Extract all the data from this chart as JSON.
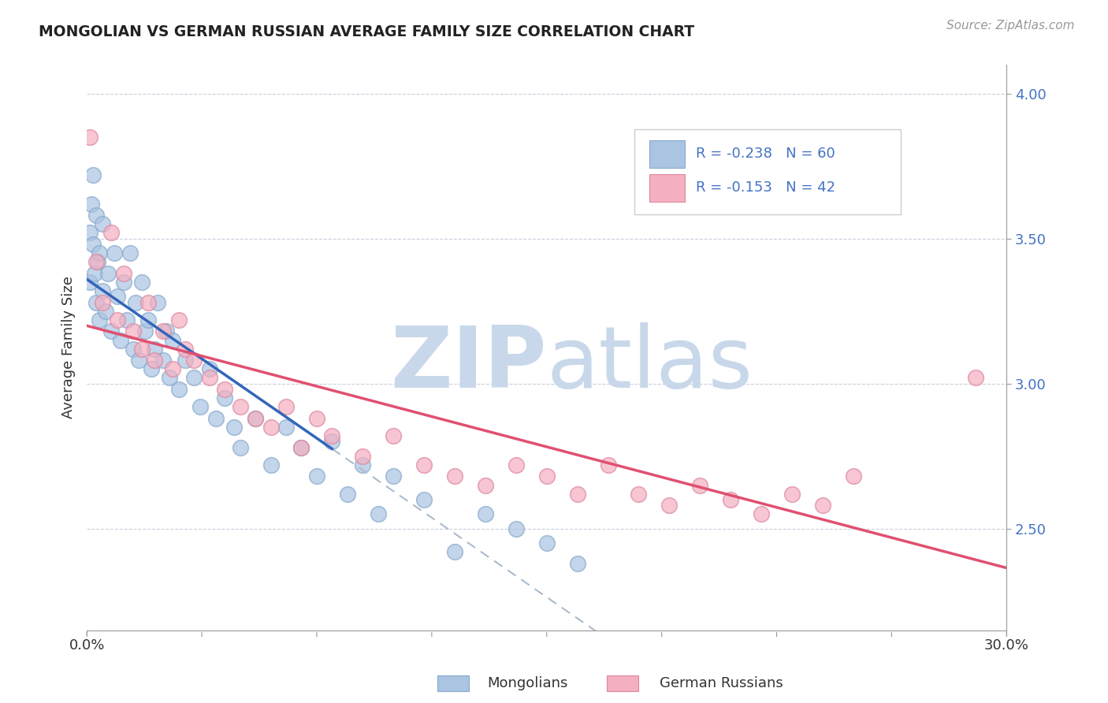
{
  "title": "MONGOLIAN VS GERMAN RUSSIAN AVERAGE FAMILY SIZE CORRELATION CHART",
  "source_text": "Source: ZipAtlas.com",
  "ylabel": "Average Family Size",
  "ymin": 2.15,
  "ymax": 4.1,
  "xmin": 0.0,
  "xmax": 30.0,
  "yticks_right": [
    2.5,
    3.0,
    3.5,
    4.0
  ],
  "mongolian_color": "#aac4e2",
  "mongolian_edge_color": "#88aacc",
  "mongolian_line_color": "#3366bb",
  "german_russian_color": "#f4afc0",
  "german_russian_edge_color": "#dd88a0",
  "german_russian_line_color": "#e05070",
  "dashed_line_color": "#aabbcc",
  "legend_R1": "-0.238",
  "legend_N1": "60",
  "legend_R2": "-0.153",
  "legend_N2": "42",
  "mongolian_x": [
    0.1,
    0.1,
    0.15,
    0.2,
    0.2,
    0.25,
    0.3,
    0.3,
    0.35,
    0.4,
    0.4,
    0.5,
    0.5,
    0.6,
    0.7,
    0.8,
    0.9,
    1.0,
    1.1,
    1.2,
    1.3,
    1.4,
    1.5,
    1.6,
    1.7,
    1.8,
    1.9,
    2.0,
    2.1,
    2.2,
    2.3,
    2.5,
    2.6,
    2.7,
    2.8,
    3.0,
    3.2,
    3.5,
    3.7,
    4.0,
    4.2,
    4.5,
    4.8,
    5.0,
    5.5,
    6.0,
    6.5,
    7.0,
    7.5,
    8.0,
    8.5,
    9.0,
    9.5,
    10.0,
    11.0,
    12.0,
    13.0,
    14.0,
    15.0,
    16.0
  ],
  "mongolian_y": [
    3.35,
    3.52,
    3.62,
    3.48,
    3.72,
    3.38,
    3.28,
    3.58,
    3.42,
    3.22,
    3.45,
    3.32,
    3.55,
    3.25,
    3.38,
    3.18,
    3.45,
    3.3,
    3.15,
    3.35,
    3.22,
    3.45,
    3.12,
    3.28,
    3.08,
    3.35,
    3.18,
    3.22,
    3.05,
    3.12,
    3.28,
    3.08,
    3.18,
    3.02,
    3.15,
    2.98,
    3.08,
    3.02,
    2.92,
    3.05,
    2.88,
    2.95,
    2.85,
    2.78,
    2.88,
    2.72,
    2.85,
    2.78,
    2.68,
    2.8,
    2.62,
    2.72,
    2.55,
    2.68,
    2.6,
    2.42,
    2.55,
    2.5,
    2.45,
    2.38
  ],
  "german_russian_x": [
    0.1,
    0.3,
    0.5,
    0.8,
    1.0,
    1.2,
    1.5,
    1.8,
    2.0,
    2.2,
    2.5,
    2.8,
    3.0,
    3.2,
    3.5,
    4.0,
    4.5,
    5.0,
    5.5,
    6.0,
    6.5,
    7.0,
    7.5,
    8.0,
    9.0,
    10.0,
    11.0,
    12.0,
    13.0,
    14.0,
    15.0,
    16.0,
    17.0,
    18.0,
    19.0,
    20.0,
    21.0,
    22.0,
    23.0,
    24.0,
    25.0,
    29.0
  ],
  "german_russian_y": [
    3.85,
    3.42,
    3.28,
    3.52,
    3.22,
    3.38,
    3.18,
    3.12,
    3.28,
    3.08,
    3.18,
    3.05,
    3.22,
    3.12,
    3.08,
    3.02,
    2.98,
    2.92,
    2.88,
    2.85,
    2.92,
    2.78,
    2.88,
    2.82,
    2.75,
    2.82,
    2.72,
    2.68,
    2.65,
    2.72,
    2.68,
    2.62,
    2.72,
    2.62,
    2.58,
    2.65,
    2.6,
    2.55,
    2.62,
    2.58,
    2.68,
    3.02
  ],
  "watermark_zip": "ZIP",
  "watermark_atlas": "atlas",
  "watermark_color": "#c8d8ea",
  "background_color": "#ffffff",
  "blue_line_x_start": 0.0,
  "blue_line_x_end": 8.0,
  "pink_line_x_start": 0.0,
  "pink_line_x_end": 30.0,
  "dash_line_x_start": 8.0,
  "dash_line_x_end": 30.0
}
